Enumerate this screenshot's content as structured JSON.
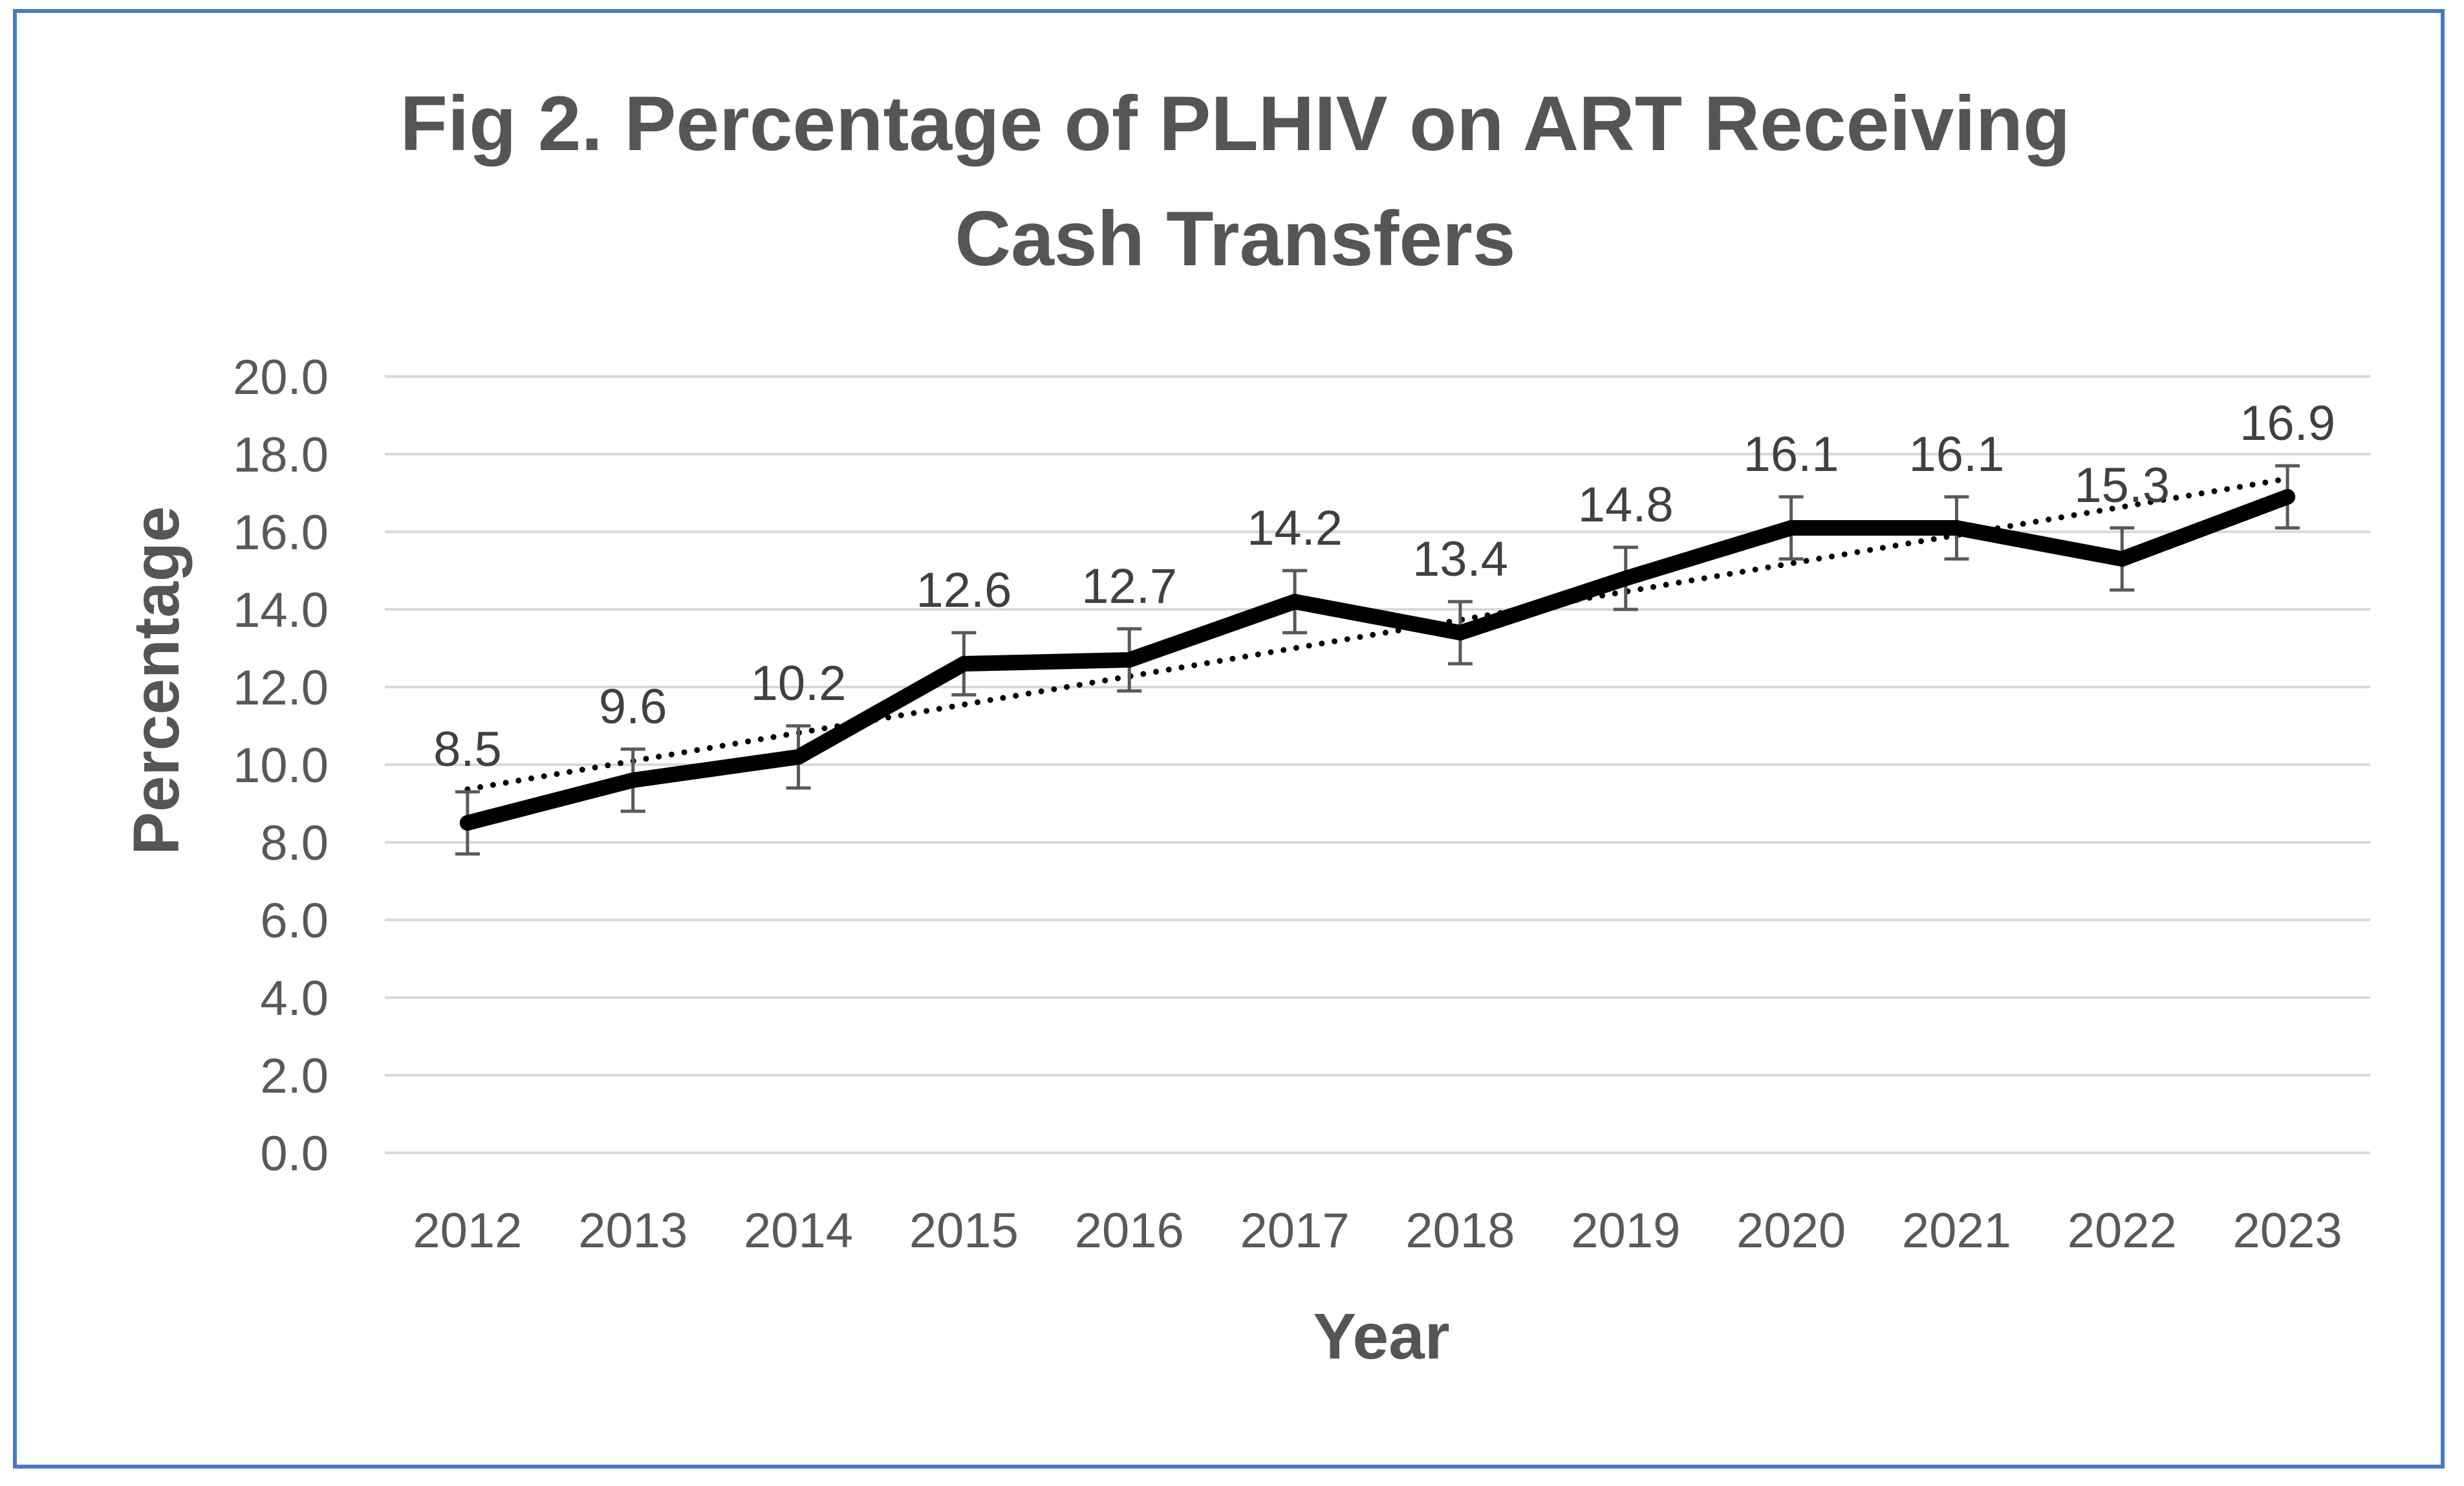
{
  "chart_data": {
    "type": "line",
    "title": "Fig 2. Percentage of PLHIV on ART Receiving Cash Transfers",
    "title_lines": [
      "Fig 2. Percentage of PLHIV on ART Receiving",
      "Cash Transfers"
    ],
    "xlabel": "Year",
    "ylabel": "Percentage",
    "categories": [
      "2012",
      "2013",
      "2014",
      "2015",
      "2016",
      "2017",
      "2018",
      "2019",
      "2020",
      "2021",
      "2022",
      "2023"
    ],
    "series": [
      {
        "values": [
          8.5,
          9.6,
          10.2,
          12.6,
          12.7,
          14.2,
          13.4,
          14.8,
          16.1,
          16.1,
          15.3,
          16.9
        ],
        "data_labels": [
          "8.5",
          "9.6",
          "10.2",
          "12.6",
          "12.7",
          "14.2",
          "13.4",
          "14.8",
          "16.1",
          "16.1",
          "15.3",
          "16.9"
        ],
        "error_bars": 0.8,
        "color": "#000000",
        "trendline": "linear"
      }
    ],
    "y_ticks": [
      "0.0",
      "2.0",
      "4.0",
      "6.0",
      "8.0",
      "10.0",
      "12.0",
      "14.0",
      "16.0",
      "18.0",
      "20.0"
    ],
    "ylim": [
      0,
      20
    ],
    "grid": true,
    "legend": "none"
  },
  "colors": {
    "frame_border": "#4a78c2",
    "gridline": "#d9d9d9",
    "text": "#595959",
    "title": "#555555",
    "series_line": "#000000",
    "error_bar": "#595959"
  }
}
